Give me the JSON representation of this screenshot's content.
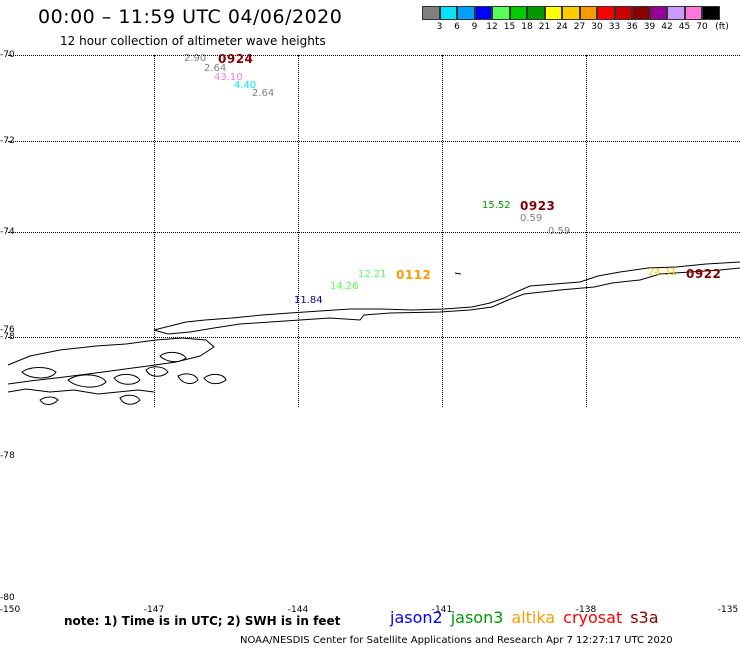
{
  "title": "00:00 – 11:59 UTC 04/06/2020",
  "subtitle": "12 hour collection of altimeter wave heights",
  "color_scale": {
    "colors": [
      "#7f7f7f",
      "#00e5ff",
      "#00a0ff",
      "#0000ff",
      "#55ff55",
      "#00cc00",
      "#009900",
      "#ffff00",
      "#ffcc00",
      "#ff9900",
      "#ff0000",
      "#cc0000",
      "#880000",
      "#990099",
      "#cc99ff",
      "#ff77dd",
      "#000000"
    ],
    "labels": [
      "3",
      "6",
      "9",
      "12",
      "15",
      "18",
      "21",
      "24",
      "27",
      "30",
      "33",
      "36",
      "39",
      "42",
      "45",
      "70",
      "(ft)"
    ]
  },
  "lat_labels": [
    "-70",
    "-72",
    "-74",
    "-76",
    "-78",
    "-78",
    "-80"
  ],
  "lon_labels": [
    "-150",
    "-147",
    "-144",
    "-141",
    "-138",
    "-135"
  ],
  "annotations": [
    {
      "text": "2.90",
      "color": "#7f7f7f"
    },
    {
      "text": "0924",
      "color": "#880000",
      "kind": "time"
    },
    {
      "text": "2.64",
      "color": "#7f7f7f"
    },
    {
      "text": "43.10",
      "color": "#ff77dd"
    },
    {
      "text": "4.40",
      "color": "#00e5ff"
    },
    {
      "text": "2.64",
      "color": "#7f7f7f"
    },
    {
      "text": "15.52",
      "color": "#009900"
    },
    {
      "text": "0923",
      "color": "#880000",
      "kind": "time"
    },
    {
      "text": "0.59",
      "color": "#7f7f7f"
    },
    {
      "text": "0.59",
      "color": "#7f7f7f"
    },
    {
      "text": "12.21",
      "color": "#55ff55"
    },
    {
      "text": "0112",
      "color": "#ff9900",
      "kind": "time"
    },
    {
      "text": "14.26",
      "color": "#55ff55"
    },
    {
      "text": "11.84",
      "color": "#0000aa"
    },
    {
      "text": "24.31",
      "color": "#ffcc00"
    },
    {
      "text": "0922",
      "color": "#880000",
      "kind": "time"
    }
  ],
  "note": "note: 1) Time is in UTC; 2) SWH is in feet",
  "satellites": [
    {
      "name": "jason2",
      "color": "#0000ff"
    },
    {
      "name": "jason3",
      "color": "#009900"
    },
    {
      "name": "altika",
      "color": "#ff9900"
    },
    {
      "name": "cryosat",
      "color": "#ff0000"
    },
    {
      "name": "s3a",
      "color": "#880000"
    }
  ],
  "footer": "NOAA/NESDIS Center for Satellite Applications and Research    Apr  7 12:27:17 UTC 2020"
}
